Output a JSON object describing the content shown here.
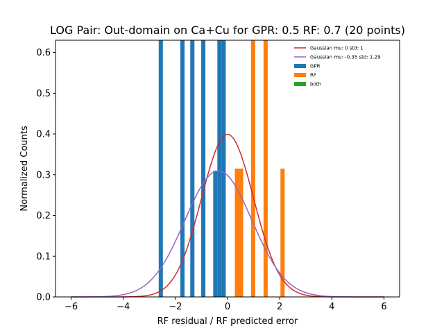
{
  "chart_data": {
    "type": "bar",
    "title": "LOG Pair: Out-domain on Ca+Cu for GPR: 0.5 RF: 0.7 (20 points)",
    "xlabel": "RF residual / RF predicted error",
    "ylabel": "Normalized Counts",
    "xlim": [
      -6.6,
      6.6
    ],
    "ylim": [
      0,
      0.63
    ],
    "xticks": [
      -6,
      -4,
      -2,
      0,
      2,
      4,
      6
    ],
    "xtick_labels": [
      "−6",
      "−4",
      "−2",
      "0",
      "2",
      "4",
      "6"
    ],
    "yticks": [
      0.0,
      0.1,
      0.2,
      0.3,
      0.4,
      0.5,
      0.6
    ],
    "ytick_labels": [
      "0.0",
      "0.1",
      "0.2",
      "0.3",
      "0.4",
      "0.5",
      "0.6"
    ],
    "legend_position": "top-right",
    "gpr_bars": {
      "name": "GPR",
      "color": "#1f77b4",
      "bins": [
        {
          "x0": -2.64,
          "x1": -2.48,
          "value": 0.63
        },
        {
          "x0": -1.81,
          "x1": -1.65,
          "value": 0.63
        },
        {
          "x0": -1.43,
          "x1": -1.27,
          "value": 0.63
        },
        {
          "x0": -1.01,
          "x1": -0.85,
          "value": 0.63
        },
        {
          "x0": -0.55,
          "x1": -0.39,
          "value": 0.31
        },
        {
          "x0": -0.39,
          "x1": -0.23,
          "value": 0.63
        },
        {
          "x0": -0.23,
          "x1": -0.07,
          "value": 0.63
        }
      ]
    },
    "rf_bars": {
      "name": "RF",
      "color": "#ff7f0e",
      "bins": [
        {
          "x0": 0.28,
          "x1": 0.44,
          "value": 0.315
        },
        {
          "x0": 0.44,
          "x1": 0.6,
          "value": 0.315
        },
        {
          "x0": 0.9,
          "x1": 1.06,
          "value": 0.63
        },
        {
          "x0": 1.38,
          "x1": 1.54,
          "value": 0.63
        },
        {
          "x0": 2.03,
          "x1": 2.19,
          "value": 0.315
        }
      ]
    },
    "both_bars": {
      "name": "both",
      "color": "#2ca02c",
      "bins": []
    },
    "curves": [
      {
        "name": "Gaussian mu: 0 std: 1",
        "color": "#d62728",
        "mu": 0,
        "std": 1,
        "x_range": [
          -6,
          6
        ]
      },
      {
        "name": "Gaussian mu: -0.35 std: 1.29",
        "color": "#9467bd",
        "mu": -0.35,
        "std": 1.29,
        "x_range": [
          -6,
          6
        ]
      }
    ]
  }
}
